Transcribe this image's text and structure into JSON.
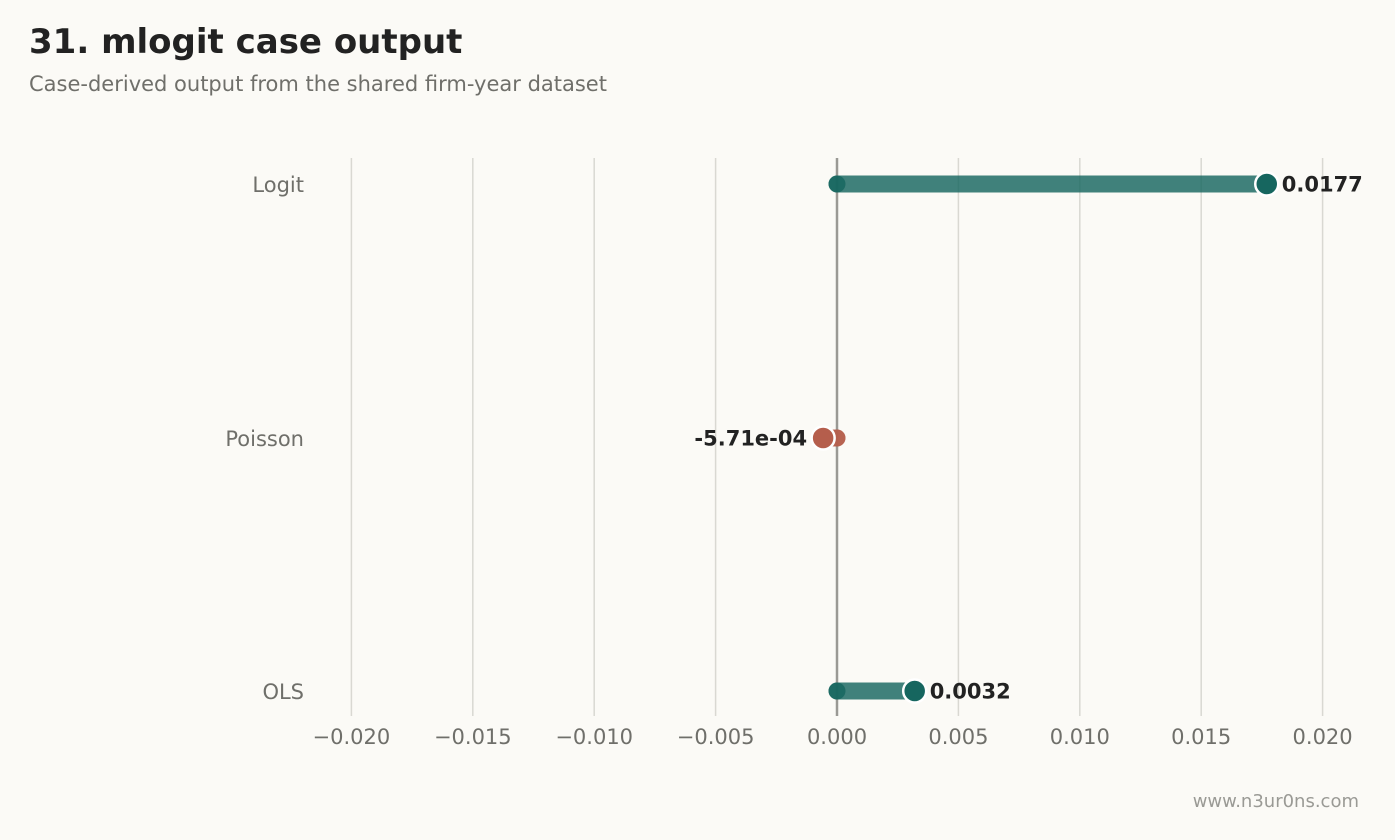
{
  "header": {
    "title": "31. mlogit case output",
    "subtitle": "Case-derived output from the shared firm-year dataset"
  },
  "watermark": "www.n3ur0ns.com",
  "colors": {
    "background": "#fbfaf6",
    "positive": "#16665f",
    "negative": "#b55e4c",
    "grid": "#d9d8d2",
    "zero_line": "#9a9994",
    "tick_text": "#6f6f6a",
    "label_text": "#222222"
  },
  "chart_data": {
    "type": "lollipop",
    "orientation": "horizontal",
    "categories": [
      "Logit",
      "Poisson",
      "OLS"
    ],
    "values": [
      0.0177,
      -0.000571,
      0.0032
    ],
    "value_labels": [
      "0.0177",
      "-5.71e-04",
      "0.0032"
    ],
    "xlim": [
      -0.022,
      0.022
    ],
    "xticks": [
      -0.02,
      -0.015,
      -0.01,
      -0.005,
      0.0,
      0.005,
      0.01,
      0.015,
      0.02
    ],
    "xtick_labels": [
      "−0.020",
      "−0.015",
      "−0.010",
      "−0.005",
      "0.000",
      "0.005",
      "0.010",
      "0.015",
      "0.020"
    ],
    "grid": "vertical",
    "zero_line": true,
    "title": "",
    "xlabel": "",
    "ylabel": ""
  }
}
